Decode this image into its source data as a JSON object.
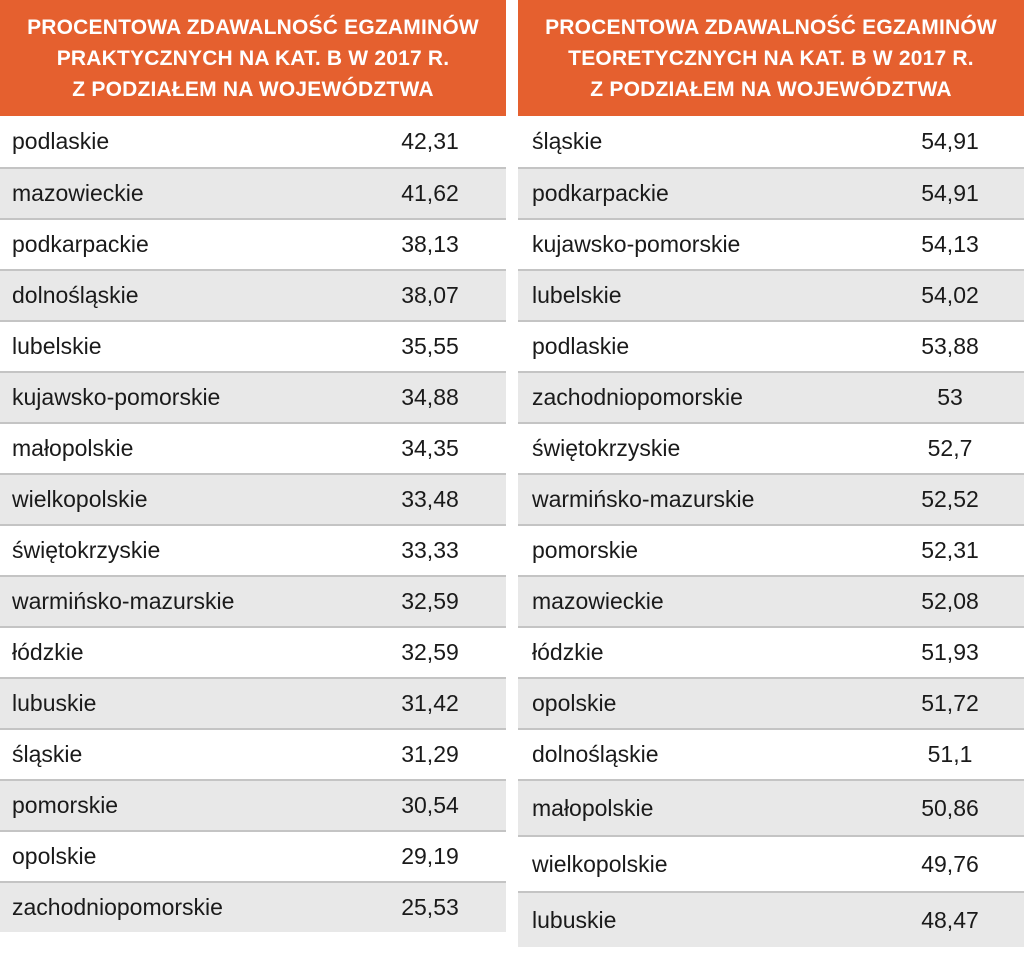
{
  "left_table": {
    "title_lines": [
      "PROCENTOWA ZDAWALNOŚĆ EGZAMINÓW",
      "PRAKTYCZNYCH NA KAT. B W 2017 R.",
      "Z PODZIAŁEM NA WOJEWÓDZTWA"
    ],
    "rows": [
      {
        "name": "podlaskie",
        "value": "42,31"
      },
      {
        "name": "mazowieckie",
        "value": "41,62"
      },
      {
        "name": "podkarpackie",
        "value": "38,13"
      },
      {
        "name": "dolnośląskie",
        "value": "38,07"
      },
      {
        "name": "lubelskie",
        "value": "35,55"
      },
      {
        "name": "kujawsko-pomorskie",
        "value": "34,88"
      },
      {
        "name": "małopolskie",
        "value": "34,35"
      },
      {
        "name": "wielkopolskie",
        "value": "33,48"
      },
      {
        "name": "świętokrzyskie",
        "value": "33,33"
      },
      {
        "name": "warmińsko-mazurskie",
        "value": "32,59"
      },
      {
        "name": "łódzkie",
        "value": "32,59"
      },
      {
        "name": "lubuskie",
        "value": "31,42"
      },
      {
        "name": "śląskie",
        "value": "31,29"
      },
      {
        "name": "pomorskie",
        "value": "30,54"
      },
      {
        "name": "opolskie",
        "value": "29,19"
      },
      {
        "name": "zachodniopomorskie",
        "value": "25,53"
      }
    ]
  },
  "right_table": {
    "title_lines": [
      "PROCENTOWA ZDAWALNOŚĆ EGZAMINÓW",
      "TEORETYCZNYCH NA KAT. B W 2017 R.",
      "Z PODZIAŁEM NA WOJEWÓDZTWA"
    ],
    "rows": [
      {
        "name": "śląskie",
        "value": "54,91"
      },
      {
        "name": "podkarpackie",
        "value": "54,91"
      },
      {
        "name": "kujawsko-pomorskie",
        "value": "54,13"
      },
      {
        "name": "lubelskie",
        "value": "54,02"
      },
      {
        "name": "podlaskie",
        "value": "53,88"
      },
      {
        "name": "zachodniopomorskie",
        "value": "53"
      },
      {
        "name": "świętokrzyskie",
        "value": "52,7"
      },
      {
        "name": "warmińsko-mazurskie",
        "value": "52,52"
      },
      {
        "name": "pomorskie",
        "value": "52,31"
      },
      {
        "name": "mazowieckie",
        "value": "52,08"
      },
      {
        "name": "łódzkie",
        "value": "51,93"
      },
      {
        "name": "opolskie",
        "value": "51,72"
      },
      {
        "name": "dolnośląskie",
        "value": "51,1"
      },
      {
        "name": "małopolskie",
        "value": "50,86"
      },
      {
        "name": "wielkopolskie",
        "value": "49,76"
      },
      {
        "name": "lubuskie",
        "value": "48,47"
      }
    ]
  },
  "colors": {
    "header_bg": "#e5602f",
    "header_text": "#ffffff",
    "row_shade": "#e8e8e8",
    "row_divider": "#c4c4c4"
  }
}
